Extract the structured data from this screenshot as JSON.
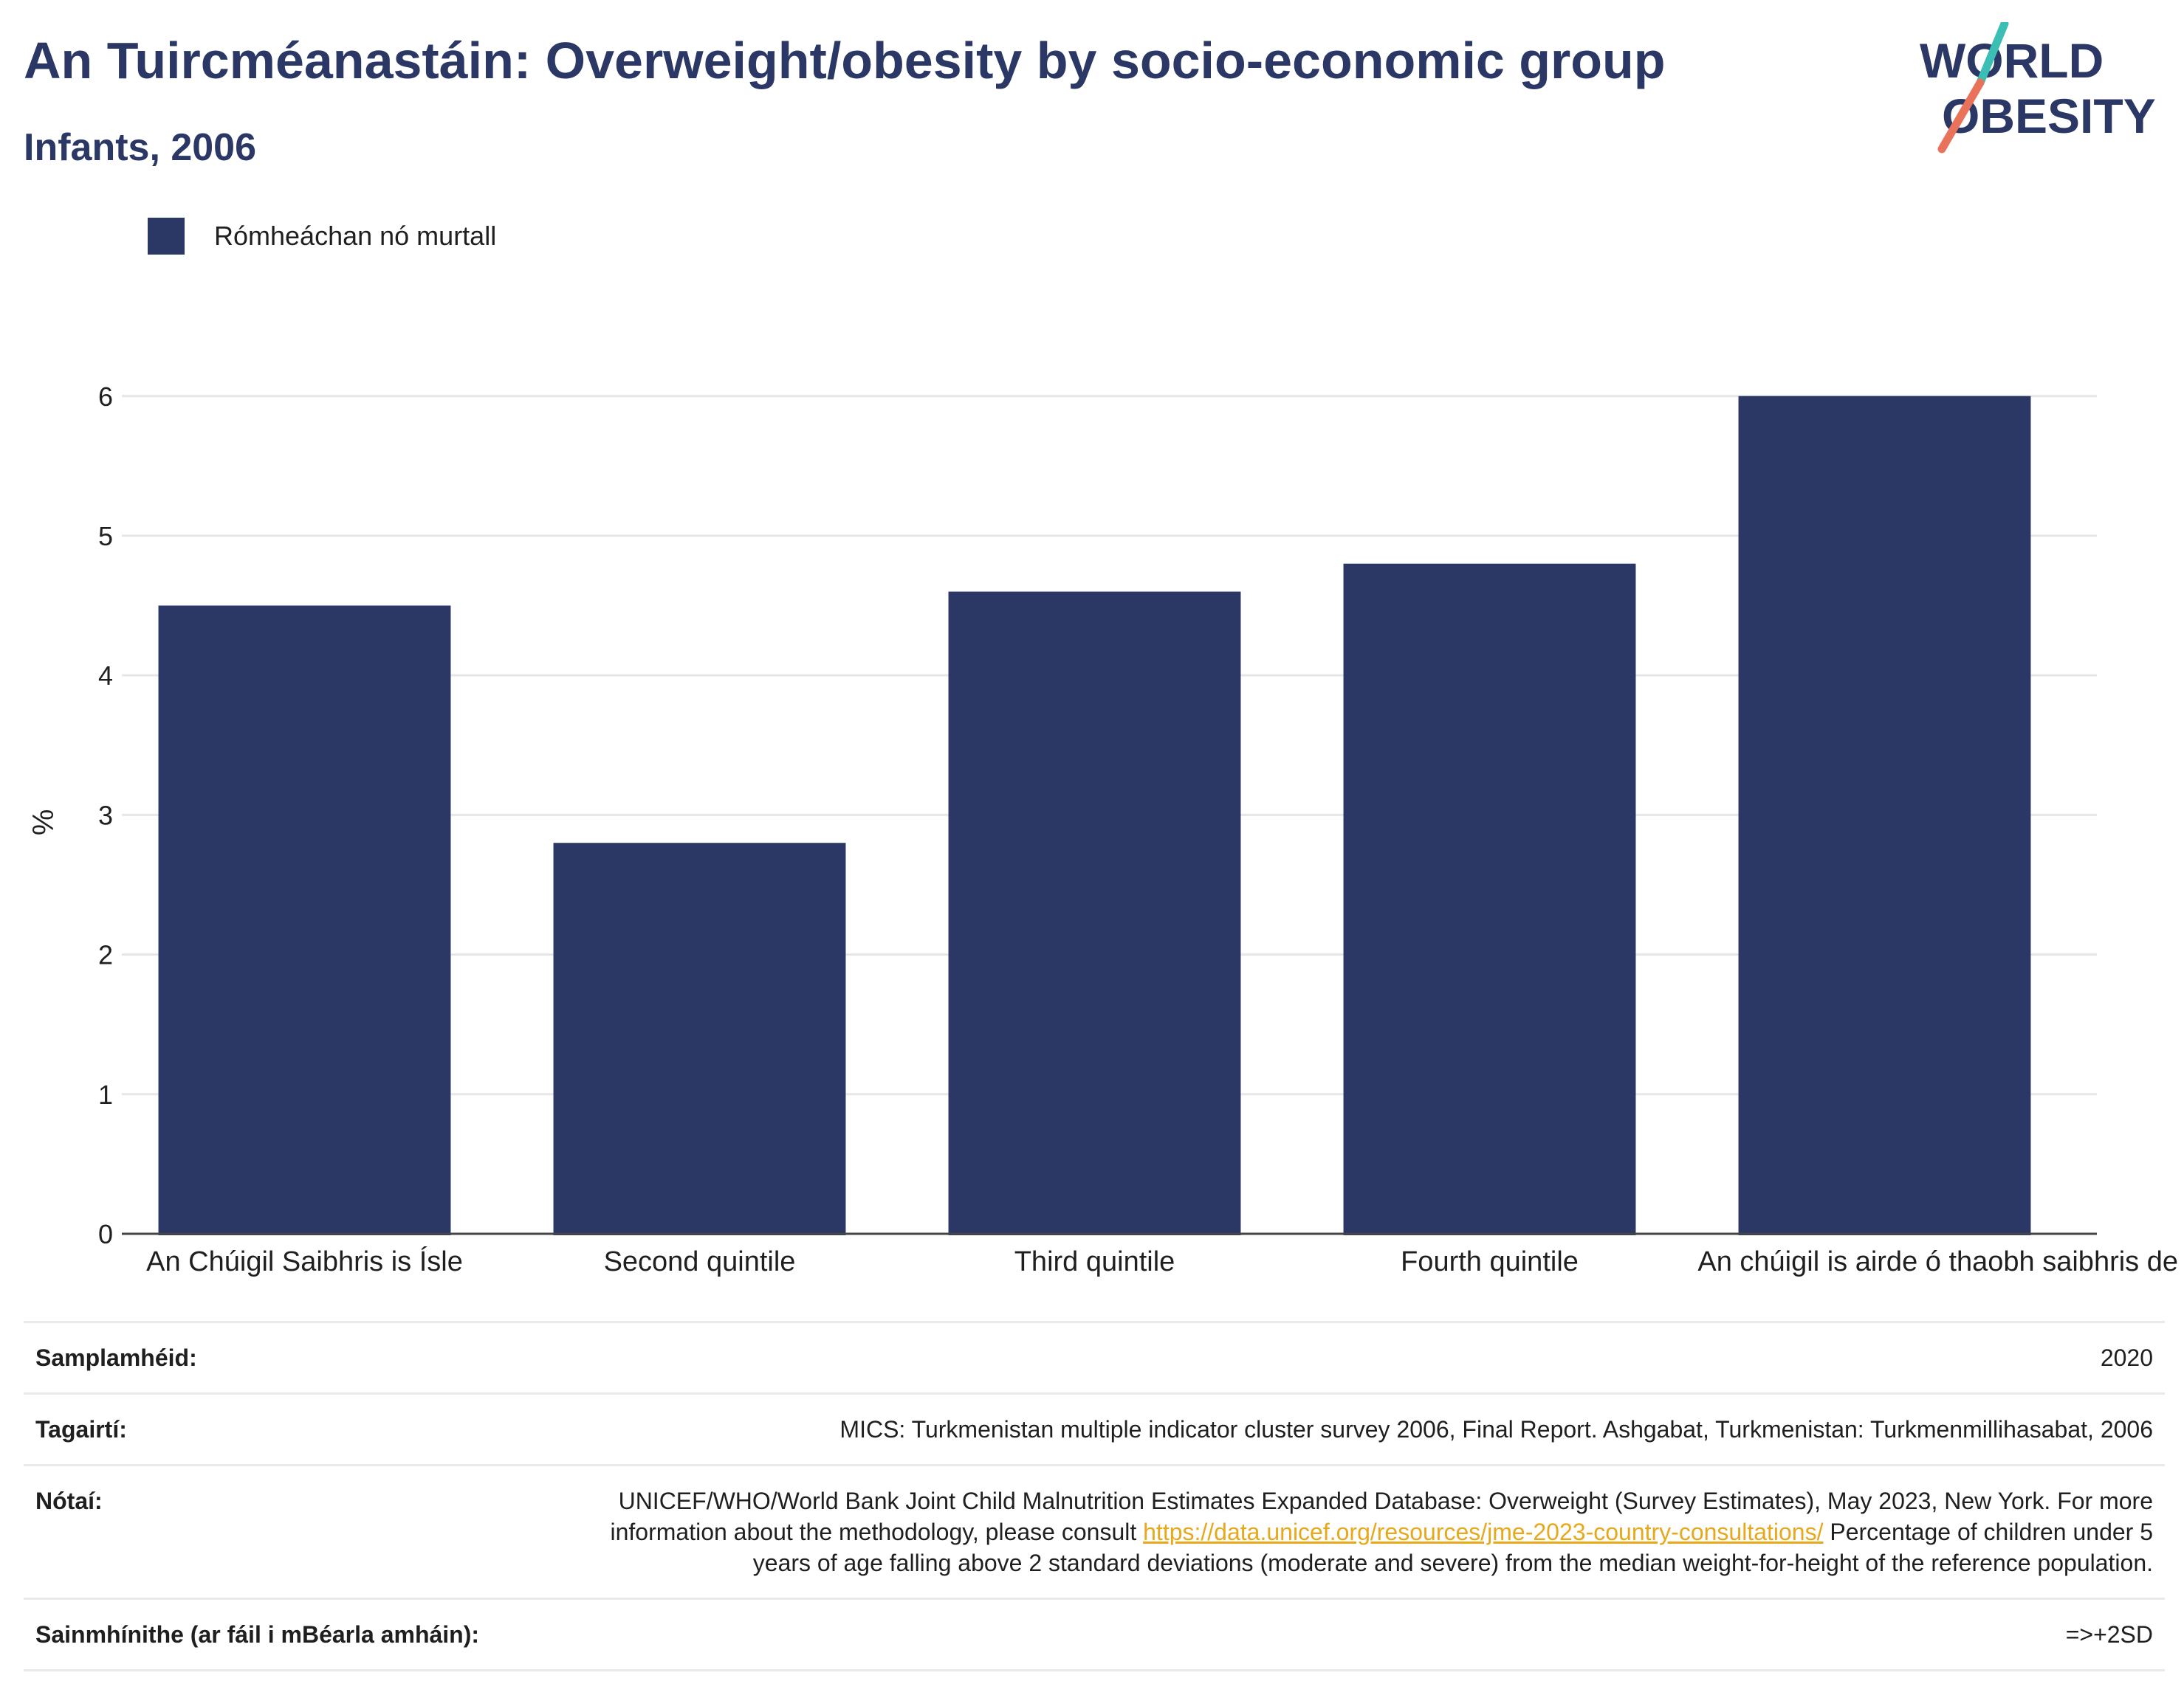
{
  "header": {
    "title": "An Tuircméanastáin: Overweight/obesity by socio-economic group",
    "subtitle": "Infants, 2006"
  },
  "logo": {
    "line1": "WORLD",
    "line2": "OBESITY",
    "colors": {
      "text": "#2b3764",
      "slash_top": "#3bbfb5",
      "slash_bottom": "#e8735a"
    }
  },
  "colors": {
    "bar": "#2b3764",
    "grid": "#e6e6e6",
    "axis": "#444444"
  },
  "chart_data": {
    "type": "bar",
    "categories": [
      "An Chúigil Saibhris is Ísle",
      "Second quintile",
      "Third quintile",
      "Fourth quintile",
      "An chúigil is airde ó thaobh saibhris de"
    ],
    "series": [
      {
        "name": "Rómheáchan nó murtall",
        "values": [
          4.5,
          2.8,
          4.6,
          4.8,
          6.0
        ]
      }
    ],
    "ylabel": "%",
    "ylim": [
      0,
      6.3
    ],
    "yticks": [
      "0",
      "1",
      "2",
      "3",
      "4",
      "5",
      "6"
    ],
    "grid": true,
    "legend": "top-left"
  },
  "meta": [
    {
      "label": "Samplamhéid:",
      "value": "2020"
    },
    {
      "label": "Tagairtí:",
      "value": "MICS: Turkmenistan multiple indicator cluster survey 2006, Final Report. Ashgabat, Turkmenistan: Turkmenmillihasabat, 2006"
    },
    {
      "label": "Nótaí:",
      "value_a": "UNICEF/WHO/World Bank Joint Child Malnutrition Estimates Expanded Database: Overweight (Survey Estimates), May 2023, New York. For more information about the methodology, please consult ",
      "link": "https://data.unicef.org/resources/jme-2023-country-consultations/",
      "value_b": " Percentage of children under 5 years of age falling above 2 standard deviations (moderate and severe) from the median weight-for-height of the reference population."
    },
    {
      "label": "Sainmhínithe (ar fáil i mBéarla amháin):",
      "value": "=>+2SD"
    }
  ]
}
